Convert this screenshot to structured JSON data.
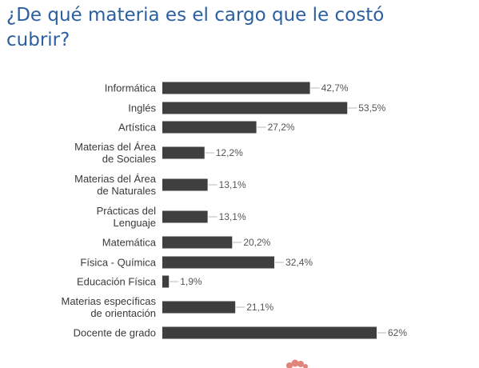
{
  "page": {
    "title": "¿De qué materia es el cargo que le costó cubrir?"
  },
  "colors": {
    "title": "#2b5f9e",
    "bar": "#3f3f3f",
    "logo": "#e2847a"
  },
  "chart_data": {
    "type": "bar",
    "orientation": "horizontal",
    "title": "¿De qué materia es el cargo que le costó cubrir?",
    "xlabel": "",
    "ylabel": "",
    "value_suffix": "%",
    "xlim": [
      0,
      62
    ],
    "grid": false,
    "legend": "none",
    "categories": [
      [
        "Informática"
      ],
      [
        "Inglés"
      ],
      [
        "Artística"
      ],
      [
        "Materias del Área",
        "de Sociales"
      ],
      [
        "Materias del Área",
        "de Naturales"
      ],
      [
        "Prácticas del",
        "Lenguaje"
      ],
      [
        "Matemática"
      ],
      [
        "Física - Química"
      ],
      [
        "Educación Física"
      ],
      [
        "Materias específicas",
        "de orientación"
      ],
      [
        "Docente de grado"
      ]
    ],
    "values": [
      42.7,
      53.5,
      27.2,
      12.2,
      13.1,
      13.1,
      20.2,
      32.4,
      1.9,
      21.1,
      62
    ],
    "value_labels": [
      "42,7%",
      "53,5%",
      "27,2%",
      "12,2%",
      "13,1%",
      "13,1%",
      "20,2%",
      "32,4%",
      "1,9%",
      "21,1%",
      "62%"
    ]
  }
}
